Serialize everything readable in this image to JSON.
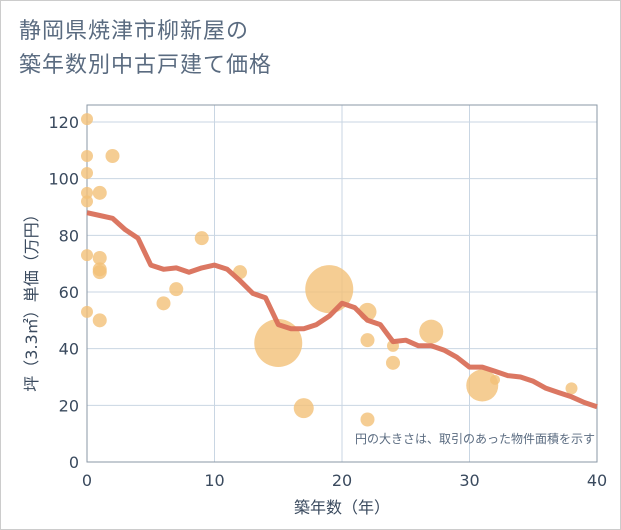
{
  "title_line1": "静岡県焼津市柳新屋の",
  "title_line2": "築年数別中古戸建て価格",
  "chart_data": {
    "type": "scatter",
    "title": "静岡県焼津市柳新屋の築年数別中古戸建て価格",
    "xlabel": "築年数（年）",
    "ylabel": "坪（3.3㎡）単価（万円）",
    "xlim": [
      0,
      40
    ],
    "ylim": [
      0,
      126
    ],
    "xticks": [
      0,
      10,
      20,
      30,
      40
    ],
    "yticks": [
      0,
      20,
      40,
      60,
      80,
      100,
      120
    ],
    "grid": true,
    "annotation": "円の大きさは、取引のあった物件面積を示す",
    "colors": {
      "points": "#f2c078",
      "line": "#d9705a"
    },
    "points": [
      {
        "x": 0,
        "y": 121,
        "size": 6
      },
      {
        "x": 0,
        "y": 108,
        "size": 6
      },
      {
        "x": 0,
        "y": 102,
        "size": 6
      },
      {
        "x": 0,
        "y": 95,
        "size": 6
      },
      {
        "x": 0,
        "y": 92,
        "size": 6
      },
      {
        "x": 1,
        "y": 95,
        "size": 7
      },
      {
        "x": 2,
        "y": 108,
        "size": 7
      },
      {
        "x": 0,
        "y": 73,
        "size": 6
      },
      {
        "x": 1,
        "y": 72,
        "size": 7
      },
      {
        "x": 1,
        "y": 68,
        "size": 7
      },
      {
        "x": 1,
        "y": 67,
        "size": 7
      },
      {
        "x": 0,
        "y": 53,
        "size": 6
      },
      {
        "x": 1,
        "y": 50,
        "size": 7
      },
      {
        "x": 6,
        "y": 56,
        "size": 7
      },
      {
        "x": 7,
        "y": 61,
        "size": 7
      },
      {
        "x": 9,
        "y": 79,
        "size": 7
      },
      {
        "x": 12,
        "y": 67,
        "size": 7
      },
      {
        "x": 15,
        "y": 42,
        "size": 24
      },
      {
        "x": 17,
        "y": 19,
        "size": 10
      },
      {
        "x": 19,
        "y": 61,
        "size": 24
      },
      {
        "x": 22,
        "y": 53,
        "size": 9
      },
      {
        "x": 22,
        "y": 43,
        "size": 7
      },
      {
        "x": 22,
        "y": 15,
        "size": 7
      },
      {
        "x": 24,
        "y": 41,
        "size": 6
      },
      {
        "x": 24,
        "y": 35,
        "size": 7
      },
      {
        "x": 27,
        "y": 46,
        "size": 12
      },
      {
        "x": 31,
        "y": 27,
        "size": 16
      },
      {
        "x": 32,
        "y": 29,
        "size": 5
      },
      {
        "x": 38,
        "y": 26,
        "size": 6
      }
    ],
    "trend": {
      "x": [
        0,
        1,
        2,
        3,
        4,
        5,
        6,
        7,
        8,
        9,
        10,
        11,
        12,
        13,
        14,
        15,
        16,
        17,
        18,
        19,
        20,
        21,
        22,
        23,
        24,
        25,
        26,
        27,
        28,
        29,
        30,
        31,
        32,
        33,
        34,
        35,
        36,
        37,
        38,
        39,
        40
      ],
      "y": [
        88,
        87,
        86,
        82,
        79,
        69.5,
        68,
        68.5,
        67,
        68.5,
        69.5,
        68,
        64,
        59.5,
        58,
        48.5,
        47,
        47,
        48.5,
        51.5,
        56,
        54.5,
        50,
        48.5,
        42.5,
        43,
        41,
        41,
        39.5,
        37,
        33.5,
        33.5,
        32,
        30.5,
        30,
        28.5,
        26,
        24.5,
        23,
        21,
        19.5
      ]
    }
  }
}
